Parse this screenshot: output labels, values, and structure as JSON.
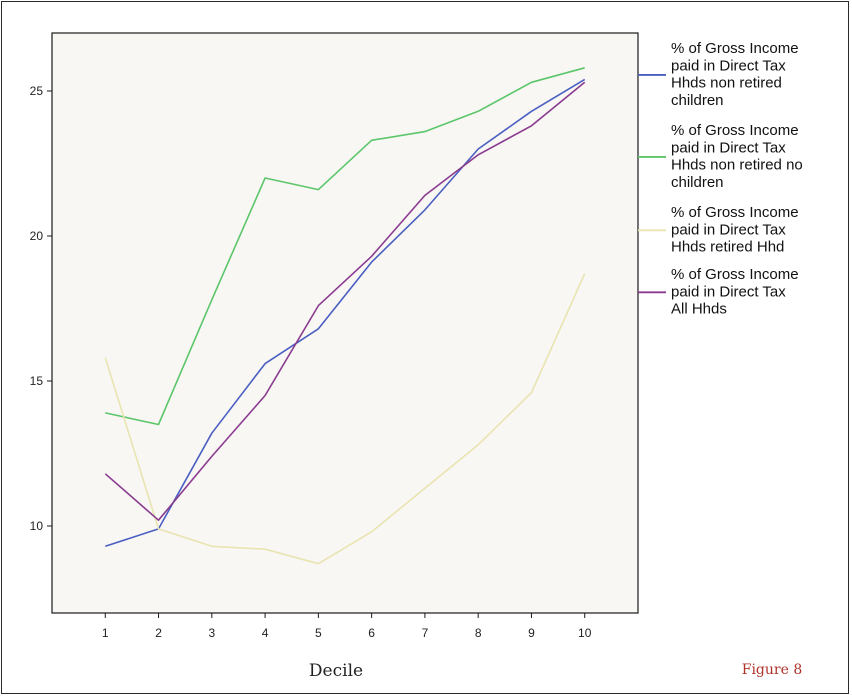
{
  "chart_data": {
    "type": "line",
    "title": "",
    "xlabel": "Decile",
    "ylabel": "",
    "caption": "Figure 8",
    "x": [
      1,
      2,
      3,
      4,
      5,
      6,
      7,
      8,
      9,
      10
    ],
    "xlim": [
      0,
      11
    ],
    "ylim": [
      7,
      27
    ],
    "yticks": [
      10,
      15,
      20,
      25
    ],
    "xticks": [
      1,
      2,
      3,
      4,
      5,
      6,
      7,
      8,
      9,
      10
    ],
    "grid": false,
    "legend_position": "right",
    "background": "#f8f7f4",
    "series": [
      {
        "name": "% of Gross Income paid in Direct Tax Hhds non retired children",
        "legend_lines": [
          "% of Gross Income",
          "paid in Direct Tax",
          "Hhds non retired",
          "children"
        ],
        "color": "#4a5fc1",
        "values": [
          9.3,
          9.9,
          13.2,
          15.6,
          16.8,
          19.1,
          20.9,
          23.0,
          24.3,
          25.4
        ]
      },
      {
        "name": "% of Gross Income paid in Direct Tax Hhds non retired no children",
        "legend_lines": [
          "% of Gross Income",
          "paid in Direct Tax",
          "Hhds non retired no",
          "children"
        ],
        "color": "#5cc66a",
        "values": [
          13.9,
          13.5,
          17.8,
          22.0,
          21.6,
          23.3,
          23.6,
          24.3,
          25.3,
          25.8
        ]
      },
      {
        "name": "% of Gross Income paid in Direct Tax Hhds retired Hhd",
        "legend_lines": [
          "% of Gross Income",
          "paid in Direct Tax",
          "Hhds retired Hhd"
        ],
        "color": "#e9e4b0",
        "values": [
          15.8,
          9.9,
          9.3,
          9.2,
          8.7,
          9.8,
          11.3,
          12.8,
          14.6,
          18.7
        ]
      },
      {
        "name": "% of Gross Income paid in Direct Tax All Hhds",
        "legend_lines": [
          "% of Gross Income",
          "paid in Direct Tax",
          "All Hhds"
        ],
        "color": "#8a3b8f",
        "values": [
          11.8,
          10.2,
          12.4,
          14.5,
          17.6,
          19.3,
          21.4,
          22.8,
          23.8,
          25.3
        ]
      }
    ]
  }
}
